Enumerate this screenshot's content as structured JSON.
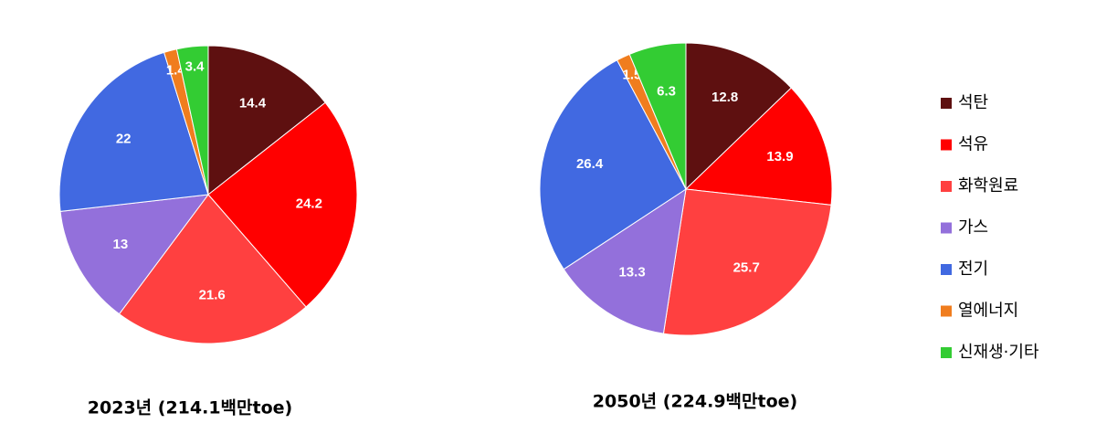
{
  "chart_data": [
    {
      "type": "pie",
      "title": "2023년 (214.1백만toe)",
      "categories": [
        "석탄",
        "석유",
        "화학원료",
        "가스",
        "전기",
        "열에너지",
        "신재생·기타"
      ],
      "values": [
        14.4,
        24.2,
        21.6,
        13.0,
        22.0,
        1.4,
        3.4
      ],
      "colors": [
        "#5e1010",
        "#ff0000",
        "#ff4040",
        "#9370db",
        "#4169e1",
        "#f07d1e",
        "#33cc33"
      ],
      "legend": "right"
    },
    {
      "type": "pie",
      "title": "2050년 (224.9백만toe)",
      "categories": [
        "석탄",
        "석유",
        "화학원료",
        "가스",
        "전기",
        "열에너지",
        "신재생·기타"
      ],
      "values": [
        12.8,
        13.9,
        25.7,
        13.3,
        26.4,
        1.5,
        6.3
      ],
      "colors": [
        "#5e1010",
        "#ff0000",
        "#ff4040",
        "#9370db",
        "#4169e1",
        "#f07d1e",
        "#33cc33"
      ],
      "legend": "right"
    }
  ]
}
